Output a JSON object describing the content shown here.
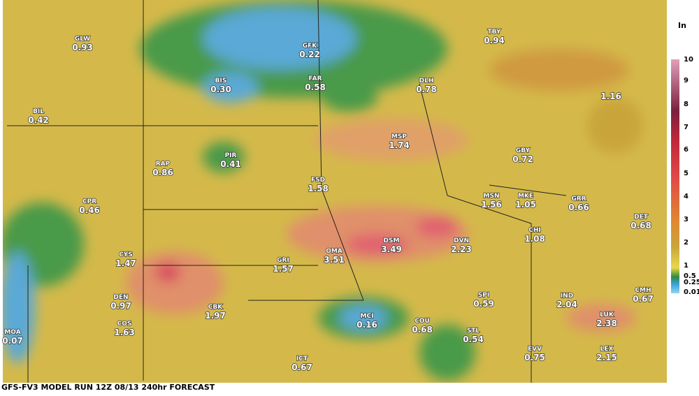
{
  "unit": "In",
  "footer": "GFS-FV3 MODEL RUN 12Z 08/13 240hr FORECAST",
  "legend": [
    "10",
    "9",
    "8",
    "7",
    "6",
    "5",
    "4",
    "3",
    "2",
    "1",
    "0.5",
    "0.25",
    "0.01"
  ],
  "stations": [
    {
      "code": "GLW",
      "value": "0.93"
    },
    {
      "code": "GFK",
      "value": "0.22"
    },
    {
      "code": "TBY",
      "value": "0.94"
    },
    {
      "code": "BIS",
      "value": "0.30"
    },
    {
      "code": "FAR",
      "value": "0.58"
    },
    {
      "code": "DLH",
      "value": "0.78"
    },
    {
      "value": "1.16"
    },
    {
      "code": "BIL",
      "value": "0.42"
    },
    {
      "code": "MSP",
      "value": "1.74"
    },
    {
      "code": "GBY",
      "value": "0.72"
    },
    {
      "code": "PIR",
      "value": "0.41"
    },
    {
      "code": "RAP",
      "value": "0.86"
    },
    {
      "code": "FSD",
      "value": "1.58"
    },
    {
      "code": "CPR",
      "value": "0.46"
    },
    {
      "code": "MSN",
      "value": "1.56"
    },
    {
      "code": "MKE",
      "value": "1.05"
    },
    {
      "code": "GRR",
      "value": "0.66"
    },
    {
      "code": "DET",
      "value": "0.68"
    },
    {
      "code": "CHI",
      "value": "1.08"
    },
    {
      "code": "CYS",
      "value": "1.47"
    },
    {
      "code": "GRI",
      "value": "1.57"
    },
    {
      "code": "OMA",
      "value": "3.51"
    },
    {
      "code": "DSM",
      "value": "3.49"
    },
    {
      "code": "DVN",
      "value": "2.23"
    },
    {
      "code": "DEN",
      "value": "0.97"
    },
    {
      "code": "CBK",
      "value": "1.97"
    },
    {
      "code": "IND",
      "value": "2.04"
    },
    {
      "code": "CMH",
      "value": "0.67"
    },
    {
      "code": "SPI",
      "value": "0.59"
    },
    {
      "code": "MOA",
      "value": "0.07"
    },
    {
      "code": "COS",
      "value": "1.63"
    },
    {
      "code": "MCI",
      "value": "0.16"
    },
    {
      "code": "COU",
      "value": "0.68"
    },
    {
      "code": "STL",
      "value": "0.54"
    },
    {
      "code": "LUK",
      "value": "2.38"
    },
    {
      "code": "EVV",
      "value": "0.75"
    },
    {
      "code": "LEX",
      "value": "2.15"
    },
    {
      "code": "ICT",
      "value": "0.67"
    }
  ]
}
